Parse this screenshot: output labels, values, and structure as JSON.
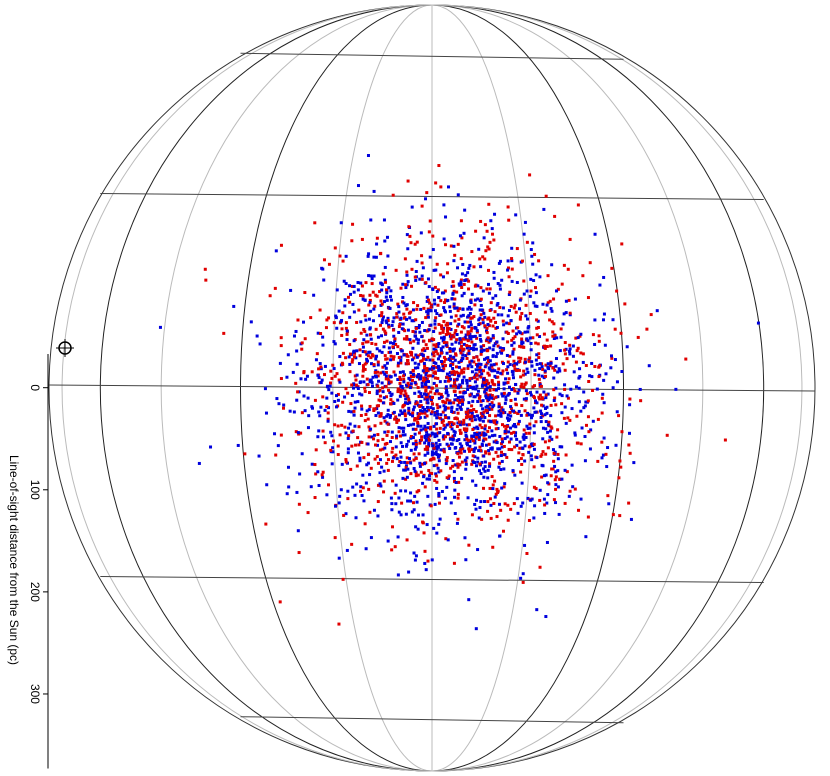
{
  "axis": {
    "label": "Line-of-sight distance from the Sun (pc)",
    "range": [
      -33,
      373
    ],
    "ticks": [
      0,
      100,
      200,
      300
    ]
  }
}
